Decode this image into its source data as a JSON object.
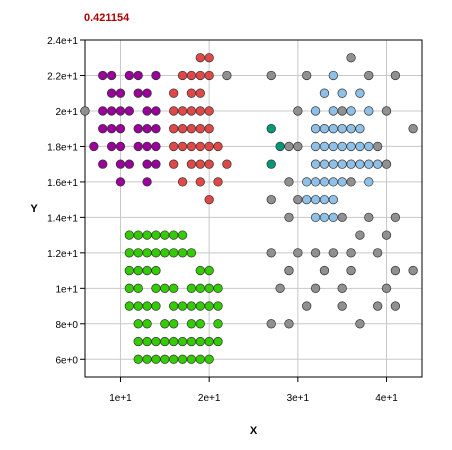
{
  "chart_data": {
    "type": "scatter",
    "title": "0.421154",
    "xlabel": "X",
    "ylabel": "Y",
    "xlim": [
      6,
      44
    ],
    "ylim": [
      5,
      24
    ],
    "grid": true,
    "x_ticks": [
      {
        "value": 10,
        "label": "1e+1"
      },
      {
        "value": 20,
        "label": "2e+1"
      },
      {
        "value": 30,
        "label": "3e+1"
      },
      {
        "value": 40,
        "label": "4e+1"
      }
    ],
    "y_ticks": [
      {
        "value": 6,
        "label": "6e+0"
      },
      {
        "value": 8,
        "label": "8e+0"
      },
      {
        "value": 10,
        "label": "1e+1"
      },
      {
        "value": 12,
        "label": "1.2e+1"
      },
      {
        "value": 14,
        "label": "1.4e+1"
      },
      {
        "value": 16,
        "label": "1.6e+1"
      },
      {
        "value": 18,
        "label": "1.8e+1"
      },
      {
        "value": 20,
        "label": "2e+1"
      },
      {
        "value": 22,
        "label": "2.2e+1"
      },
      {
        "value": 24,
        "label": "2.4e+1"
      }
    ],
    "series": [
      {
        "color": "#990099",
        "points": [
          [
            8,
            22
          ],
          [
            9,
            22
          ],
          [
            11,
            22
          ],
          [
            12,
            22
          ],
          [
            14,
            22
          ],
          [
            9,
            21
          ],
          [
            10,
            21
          ],
          [
            12,
            21
          ],
          [
            13,
            21
          ],
          [
            8,
            20
          ],
          [
            9,
            20
          ],
          [
            10,
            20
          ],
          [
            11,
            20
          ],
          [
            13,
            20
          ],
          [
            14,
            20
          ],
          [
            8,
            19
          ],
          [
            9,
            19
          ],
          [
            10,
            19
          ],
          [
            12,
            19
          ],
          [
            13,
            19
          ],
          [
            14,
            19
          ],
          [
            7,
            18
          ],
          [
            9,
            18
          ],
          [
            10,
            18
          ],
          [
            12,
            18
          ],
          [
            13,
            18
          ],
          [
            14,
            18
          ],
          [
            8,
            17
          ],
          [
            10,
            17
          ],
          [
            11,
            17
          ],
          [
            13,
            17
          ],
          [
            14,
            17
          ],
          [
            10,
            16
          ],
          [
            13,
            16
          ]
        ]
      },
      {
        "color": "#e04848",
        "points": [
          [
            19,
            23
          ],
          [
            20,
            23
          ],
          [
            17,
            22
          ],
          [
            18,
            22
          ],
          [
            19,
            22
          ],
          [
            20,
            22
          ],
          [
            16,
            21
          ],
          [
            18,
            21
          ],
          [
            19,
            21
          ],
          [
            16,
            20
          ],
          [
            17,
            20
          ],
          [
            18,
            20
          ],
          [
            19,
            20
          ],
          [
            20,
            20
          ],
          [
            16,
            19
          ],
          [
            17,
            19
          ],
          [
            18,
            19
          ],
          [
            19,
            19
          ],
          [
            20,
            19
          ],
          [
            16,
            18
          ],
          [
            17,
            18
          ],
          [
            18,
            18
          ],
          [
            19,
            18
          ],
          [
            20,
            18
          ],
          [
            21,
            18
          ],
          [
            16,
            17
          ],
          [
            18,
            17
          ],
          [
            19,
            17
          ],
          [
            20,
            17
          ],
          [
            22,
            17
          ],
          [
            17,
            16
          ],
          [
            19,
            16
          ],
          [
            21,
            16
          ],
          [
            20,
            15
          ]
        ]
      },
      {
        "color": "#33cc00",
        "points": [
          [
            11,
            13
          ],
          [
            12,
            13
          ],
          [
            13,
            13
          ],
          [
            14,
            13
          ],
          [
            15,
            13
          ],
          [
            16,
            13
          ],
          [
            17,
            13
          ],
          [
            11,
            12
          ],
          [
            12,
            12
          ],
          [
            13,
            12
          ],
          [
            14,
            12
          ],
          [
            15,
            12
          ],
          [
            16,
            12
          ],
          [
            17,
            12
          ],
          [
            18,
            12
          ],
          [
            11,
            11
          ],
          [
            12,
            11
          ],
          [
            13,
            11
          ],
          [
            14,
            11
          ],
          [
            19,
            11
          ],
          [
            20,
            11
          ],
          [
            11,
            10
          ],
          [
            12,
            10
          ],
          [
            14,
            10
          ],
          [
            15,
            10
          ],
          [
            16,
            10
          ],
          [
            18,
            10
          ],
          [
            19,
            10
          ],
          [
            20,
            10
          ],
          [
            21,
            10
          ],
          [
            11,
            9
          ],
          [
            12,
            9
          ],
          [
            13,
            9
          ],
          [
            14,
            9
          ],
          [
            16,
            9
          ],
          [
            17,
            9
          ],
          [
            18,
            9
          ],
          [
            19,
            9
          ],
          [
            20,
            9
          ],
          [
            21,
            9
          ],
          [
            12,
            8
          ],
          [
            13,
            8
          ],
          [
            15,
            8
          ],
          [
            16,
            8
          ],
          [
            18,
            8
          ],
          [
            19,
            8
          ],
          [
            21,
            8
          ],
          [
            12,
            7
          ],
          [
            13,
            7
          ],
          [
            14,
            7
          ],
          [
            15,
            7
          ],
          [
            16,
            7
          ],
          [
            17,
            7
          ],
          [
            18,
            7
          ],
          [
            19,
            7
          ],
          [
            20,
            7
          ],
          [
            21,
            7
          ],
          [
            12,
            6
          ],
          [
            13,
            6
          ],
          [
            14,
            6
          ],
          [
            15,
            6
          ],
          [
            16,
            6
          ],
          [
            17,
            6
          ],
          [
            18,
            6
          ],
          [
            19,
            6
          ],
          [
            20,
            6
          ]
        ]
      },
      {
        "color": "#8ec0e8",
        "points": [
          [
            34,
            22
          ],
          [
            33,
            21
          ],
          [
            35,
            21
          ],
          [
            37,
            21
          ],
          [
            32,
            20
          ],
          [
            34,
            20
          ],
          [
            36,
            20
          ],
          [
            38,
            20
          ],
          [
            32,
            19
          ],
          [
            33,
            19
          ],
          [
            34,
            19
          ],
          [
            35,
            19
          ],
          [
            36,
            19
          ],
          [
            37,
            19
          ],
          [
            32,
            18
          ],
          [
            33,
            18
          ],
          [
            34,
            18
          ],
          [
            35,
            18
          ],
          [
            36,
            18
          ],
          [
            37,
            18
          ],
          [
            38,
            18
          ],
          [
            32,
            17
          ],
          [
            33,
            17
          ],
          [
            34,
            17
          ],
          [
            35,
            17
          ],
          [
            36,
            17
          ],
          [
            37,
            17
          ],
          [
            38,
            17
          ],
          [
            39,
            17
          ],
          [
            31,
            16
          ],
          [
            32,
            16
          ],
          [
            33,
            16
          ],
          [
            34,
            16
          ],
          [
            35,
            16
          ],
          [
            38,
            16
          ],
          [
            31,
            15
          ],
          [
            32,
            15
          ],
          [
            33,
            15
          ],
          [
            34,
            15
          ],
          [
            32,
            14
          ],
          [
            33,
            14
          ],
          [
            34,
            14
          ]
        ]
      },
      {
        "color": "#009977",
        "points": [
          [
            27,
            19
          ],
          [
            28,
            18
          ],
          [
            27,
            17
          ]
        ]
      },
      {
        "color": "#909090",
        "points": [
          [
            36,
            23
          ],
          [
            22,
            22
          ],
          [
            27,
            22
          ],
          [
            31,
            22
          ],
          [
            38,
            22
          ],
          [
            41,
            22
          ],
          [
            6,
            20
          ],
          [
            30,
            20
          ],
          [
            35,
            20
          ],
          [
            40,
            20
          ],
          [
            43,
            19
          ],
          [
            30,
            18
          ],
          [
            29,
            18
          ],
          [
            39,
            18
          ],
          [
            40,
            17
          ],
          [
            29,
            16
          ],
          [
            36,
            16
          ],
          [
            27,
            15
          ],
          [
            30,
            15
          ],
          [
            29,
            14
          ],
          [
            35,
            14
          ],
          [
            38,
            14
          ],
          [
            41,
            14
          ],
          [
            37,
            13
          ],
          [
            40,
            13
          ],
          [
            27,
            12
          ],
          [
            30,
            12
          ],
          [
            32,
            12
          ],
          [
            34,
            12
          ],
          [
            36,
            12
          ],
          [
            39,
            12
          ],
          [
            29,
            11
          ],
          [
            33,
            11
          ],
          [
            36,
            11
          ],
          [
            41,
            11
          ],
          [
            43,
            11
          ],
          [
            28,
            10
          ],
          [
            32,
            10
          ],
          [
            35,
            10
          ],
          [
            40,
            10
          ],
          [
            31,
            9
          ],
          [
            35,
            9
          ],
          [
            39,
            9
          ],
          [
            41,
            9
          ],
          [
            27,
            8
          ],
          [
            29,
            8
          ],
          [
            37,
            8
          ]
        ]
      }
    ]
  }
}
